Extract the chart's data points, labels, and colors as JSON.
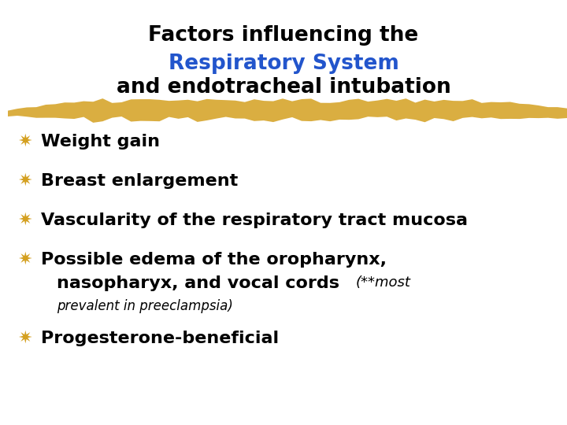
{
  "title_line1": "Factors influencing the",
  "title_line2": "Respiratory System",
  "title_line3": "and endotracheal intubation",
  "title_color1": "#000000",
  "title_color2": "#2255cc",
  "title_color3": "#000000",
  "bullet_char": "✷",
  "bullet_color": "#d4a020",
  "background_color": "#ffffff",
  "highlight_color": "#d4a020",
  "title_fontsize": 19,
  "bullet_fontsize": 16,
  "text_fontsize": 16
}
